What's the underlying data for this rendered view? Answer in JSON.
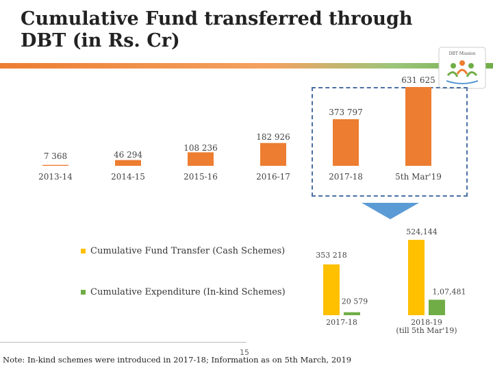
{
  "title": "Cumulative Fund transferred through DBT (in Rs. Cr)",
  "logo_text": "DBT Mission",
  "footnote": "Note: In-kind schemes were introduced in 2017-18; Information as on 5th March, 2019",
  "page_number": "15",
  "colors": {
    "orange": "#ED7D31",
    "yellow": "#FFC000",
    "green": "#70AD47",
    "blue": "#5B9BD5",
    "dashed": "#4a6fa5"
  },
  "chart_data": [
    {
      "type": "bar",
      "categories": [
        "2013-14",
        "2014-15",
        "2015-16",
        "2016-17",
        "2017-18",
        "5th Mar'19"
      ],
      "values": [
        7368,
        46294,
        108236,
        182926,
        373797,
        631625
      ],
      "value_labels": [
        "7 368",
        "46 294",
        "108 236",
        "182 926",
        "373 797",
        "631 625"
      ],
      "ylim": [
        0,
        631625
      ],
      "grid": false,
      "color": "#ED7D31"
    },
    {
      "type": "bar",
      "categories": [
        "2017-18",
        "2018-19\n(till 5th Mar'19)"
      ],
      "category_lines": [
        [
          "2017-18"
        ],
        [
          "2018-19",
          "(till 5th Mar'19)"
        ]
      ],
      "series": [
        {
          "name": "Cumulative Fund Transfer (Cash Schemes)",
          "values": [
            353218,
            524144
          ],
          "value_labels": [
            "353 218",
            "524,144"
          ],
          "color": "#FFC000"
        },
        {
          "name": "Cumulative Expenditure (In-kind Schemes)",
          "values": [
            20579,
            107481
          ],
          "value_labels": [
            "20 579",
            "1,07,481"
          ],
          "color": "#70AD47"
        }
      ],
      "ylim": [
        0,
        524144
      ],
      "legend": "left",
      "grid": false
    }
  ]
}
